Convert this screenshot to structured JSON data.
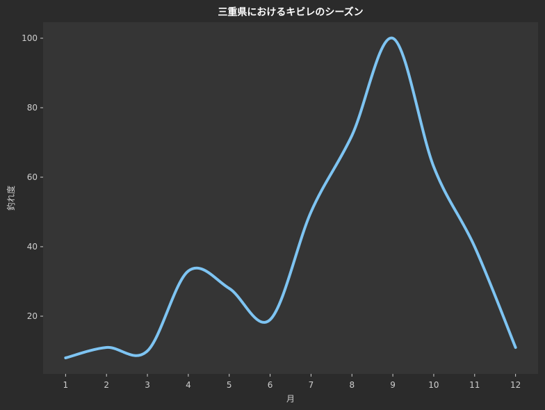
{
  "chart_data": {
    "type": "line",
    "title": "三重県におけるキビレのシーズン",
    "xlabel": "月",
    "ylabel": "釣れ度",
    "x": [
      1,
      2,
      3,
      4,
      5,
      6,
      7,
      8,
      9,
      10,
      11,
      12
    ],
    "series": [
      {
        "values": [
          8,
          11,
          10,
          33,
          28,
          19,
          50,
          72,
          100,
          63,
          40,
          11
        ]
      }
    ],
    "xticks": [
      "1",
      "2",
      "3",
      "4",
      "5",
      "6",
      "7",
      "8",
      "9",
      "10",
      "11",
      "12"
    ],
    "yticks": [
      "20",
      "40",
      "60",
      "80",
      "100"
    ],
    "xlim": [
      0.45,
      12.55
    ],
    "ylim": [
      3.4,
      104.6
    ],
    "grid": false,
    "colors": {
      "background": "#2b2b2b",
      "plot_background": "#353535",
      "line": "#7ec4f2",
      "text": "#cfcfcf",
      "title": "#ffffff"
    }
  }
}
